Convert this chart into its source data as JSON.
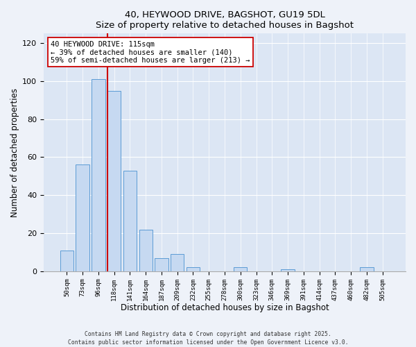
{
  "title": "40, HEYWOOD DRIVE, BAGSHOT, GU19 5DL",
  "subtitle": "Size of property relative to detached houses in Bagshot",
  "xlabel": "Distribution of detached houses by size in Bagshot",
  "ylabel": "Number of detached properties",
  "bar_labels": [
    "50sqm",
    "73sqm",
    "96sqm",
    "118sqm",
    "141sqm",
    "164sqm",
    "187sqm",
    "209sqm",
    "232sqm",
    "255sqm",
    "278sqm",
    "300sqm",
    "323sqm",
    "346sqm",
    "369sqm",
    "391sqm",
    "414sqm",
    "437sqm",
    "460sqm",
    "482sqm",
    "505sqm"
  ],
  "bar_values": [
    11,
    56,
    101,
    95,
    53,
    22,
    7,
    9,
    2,
    0,
    0,
    2,
    0,
    0,
    1,
    0,
    0,
    0,
    0,
    2,
    0
  ],
  "bar_color": "#c6d9f1",
  "bar_edge_color": "#5b9bd5",
  "ylim": [
    0,
    125
  ],
  "yticks": [
    0,
    20,
    40,
    60,
    80,
    100,
    120
  ],
  "property_line_index": 3,
  "property_line_color": "#cc0000",
  "annotation_text": "40 HEYWOOD DRIVE: 115sqm\n← 39% of detached houses are smaller (140)\n59% of semi-detached houses are larger (213) →",
  "footer_line1": "Contains HM Land Registry data © Crown copyright and database right 2025.",
  "footer_line2": "Contains public sector information licensed under the Open Government Licence v3.0.",
  "bg_color": "#eef2f9",
  "plot_bg_color": "#dce6f4",
  "grid_color": "#ffffff"
}
